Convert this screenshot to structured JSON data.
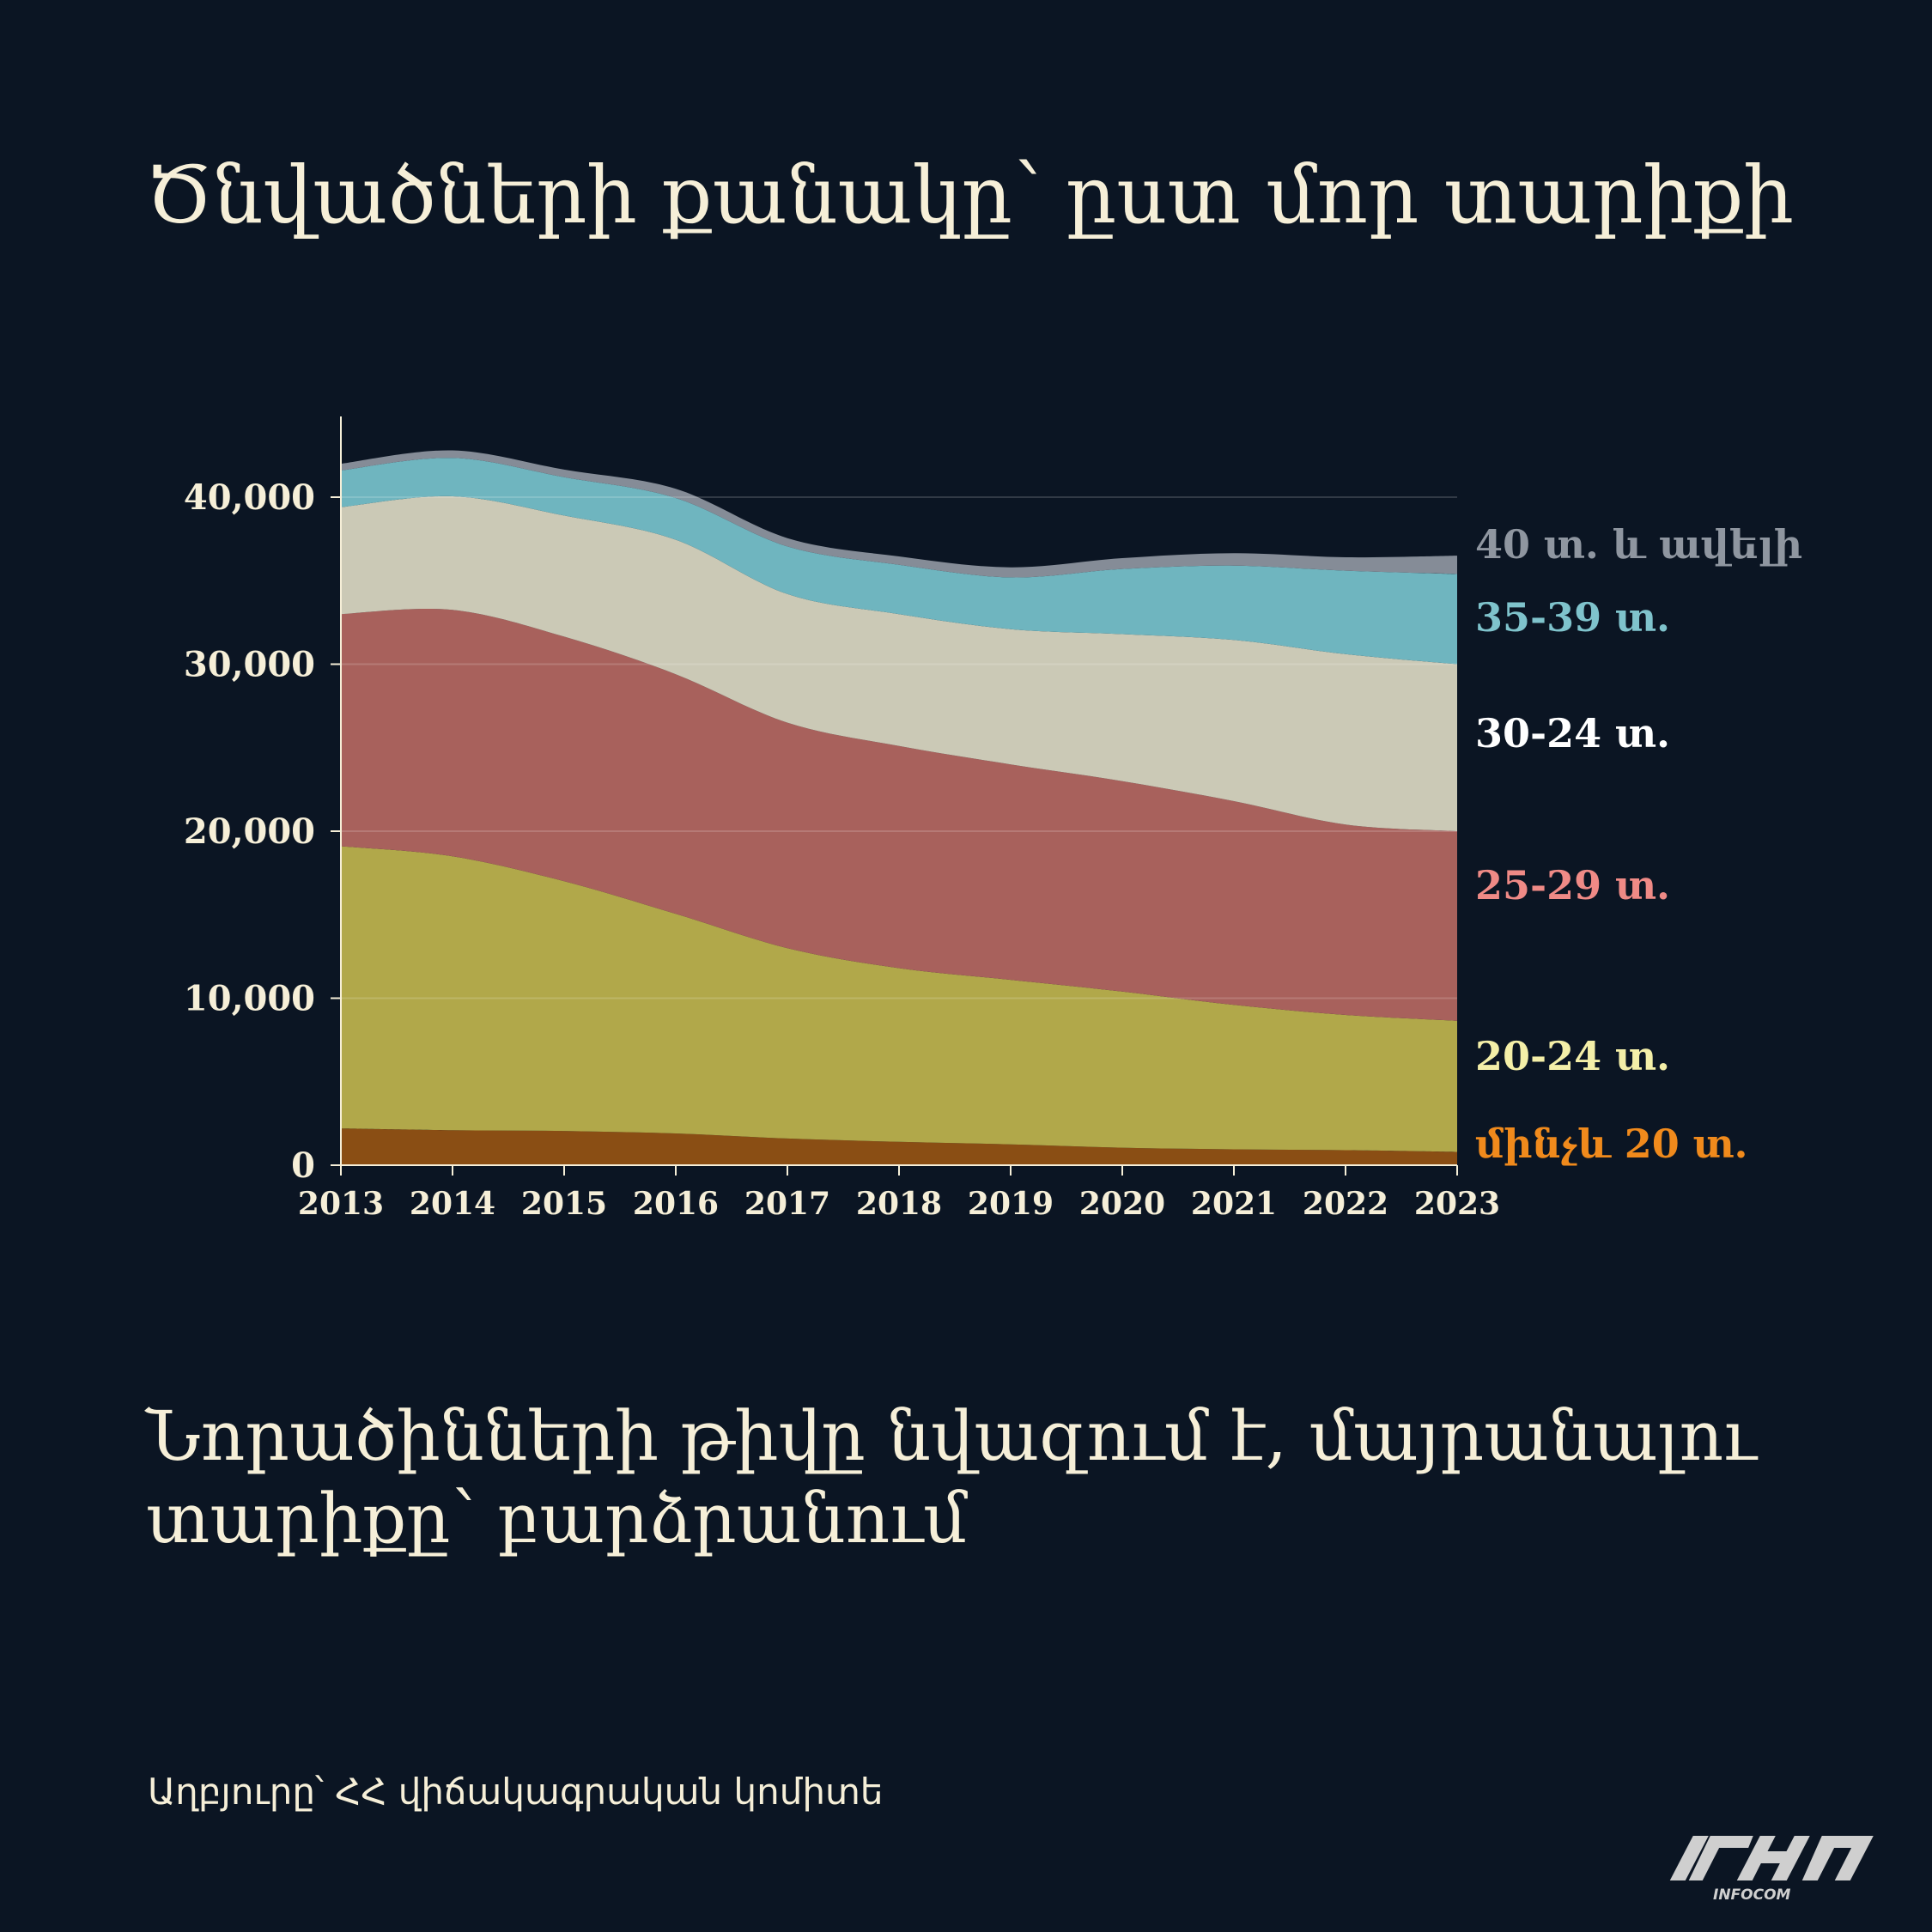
{
  "title": "Ծնվածների քանակը՝ ըստ մոր տարիքի",
  "subtitle": "Նորածինների թիվը նվազում է, մայրանալու տարիքը՝ բարձրանում",
  "source": "Աղբյուրը՝  ՀՀ վիճակագրական կոմիտե",
  "logo": {
    "text": "INFOCOM"
  },
  "colors": {
    "background": "#0b1523",
    "text": "#f6efd8",
    "grid": "#2f3a48"
  },
  "chart_data": {
    "type": "area",
    "stacked": true,
    "x": [
      2013,
      2014,
      2015,
      2016,
      2017,
      2018,
      2019,
      2020,
      2021,
      2022,
      2023
    ],
    "xlim": [
      2013,
      2023
    ],
    "ylim": [
      0,
      45000
    ],
    "yticks": [
      0,
      10000,
      20000,
      30000,
      40000
    ],
    "ytick_labels": [
      "0",
      "10,000",
      "20,000",
      "30,000",
      "40,000"
    ],
    "xtick_labels": [
      "2013",
      "2014",
      "2015",
      "2016",
      "2017",
      "2018",
      "2019",
      "2020",
      "2021",
      "2022",
      "2023"
    ],
    "grid": true,
    "legend": "right-end labels",
    "series": [
      {
        "name": "մինչև 20 տ.",
        "color": "#8a4e14",
        "label_color": "#f08a1c",
        "values": [
          2200,
          2100,
          2050,
          1900,
          1600,
          1400,
          1250,
          1050,
          950,
          900,
          800
        ]
      },
      {
        "name": "20-24 տ.",
        "color": "#b1a84a",
        "label_color": "#f4efa8",
        "values": [
          16900,
          16400,
          14950,
          13150,
          11400,
          10400,
          9850,
          9350,
          8650,
          8100,
          7850
        ]
      },
      {
        "name": "25-29 տ.",
        "color": "#a8615c",
        "label_color": "#ef8a86",
        "values": [
          13900,
          14750,
          14650,
          14350,
          13500,
          13300,
          12900,
          12600,
          12200,
          11400,
          11350
        ]
      },
      {
        "name": "30-24 տ.",
        "color": "#cbc9b6",
        "label_color": "#ffffff",
        "values": [
          6400,
          6800,
          7250,
          8050,
          7700,
          7900,
          8100,
          8800,
          9650,
          10200,
          10000
        ]
      },
      {
        "name": "35-39 տ.",
        "color": "#6fb5bf",
        "label_color": "#7fc3cc",
        "values": [
          2200,
          2300,
          2300,
          2500,
          2850,
          2950,
          3100,
          3900,
          4450,
          5000,
          5400
        ]
      },
      {
        "name": "40 տ. և ավելի",
        "color": "#858c97",
        "label_color": "#8f96a0",
        "values": [
          400,
          450,
          450,
          550,
          500,
          500,
          600,
          650,
          750,
          800,
          1100
        ]
      }
    ]
  }
}
